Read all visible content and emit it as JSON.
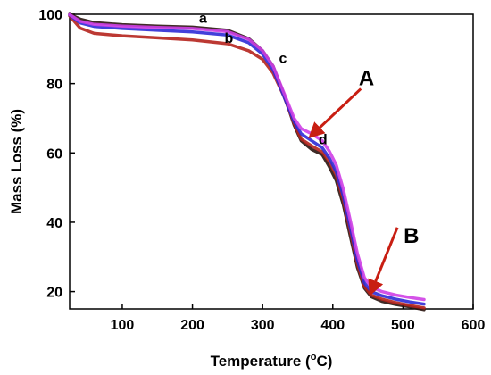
{
  "chart_data": {
    "type": "line",
    "xlabel": "Temperature (°C)",
    "xlabel_parts": {
      "main": "Temperature (",
      "sup": "o",
      "rest": "C)"
    },
    "ylabel": "Mass Loss (%)",
    "xlim": [
      25,
      600
    ],
    "ylim": [
      15,
      100
    ],
    "xticks": [
      100,
      200,
      300,
      400,
      500,
      600
    ],
    "yticks": [
      20,
      40,
      60,
      80,
      100
    ],
    "grid": false,
    "series": [
      {
        "name": "a",
        "color": "#2a1410",
        "points": [
          [
            25,
            100
          ],
          [
            40,
            98.6
          ],
          [
            60,
            97.6
          ],
          [
            100,
            97.0
          ],
          [
            150,
            96.6
          ],
          [
            200,
            96.3
          ],
          [
            250,
            95.4
          ],
          [
            280,
            93.0
          ],
          [
            300,
            89.5
          ],
          [
            315,
            85.0
          ],
          [
            330,
            77.0
          ],
          [
            345,
            68.0
          ],
          [
            355,
            63.5
          ],
          [
            370,
            61.0
          ],
          [
            385,
            59.5
          ],
          [
            395,
            56.0
          ],
          [
            405,
            52.0
          ],
          [
            415,
            45.0
          ],
          [
            425,
            36.0
          ],
          [
            435,
            27.0
          ],
          [
            445,
            21.0
          ],
          [
            455,
            18.5
          ],
          [
            470,
            17.2
          ],
          [
            490,
            16.3
          ],
          [
            510,
            15.6
          ],
          [
            530,
            14.8
          ]
        ]
      },
      {
        "name": "b",
        "color": "#b5231d",
        "points": [
          [
            25,
            99.5
          ],
          [
            40,
            96.0
          ],
          [
            60,
            94.5
          ],
          [
            100,
            93.8
          ],
          [
            150,
            93.2
          ],
          [
            200,
            92.6
          ],
          [
            250,
            91.5
          ],
          [
            280,
            89.5
          ],
          [
            300,
            87.0
          ],
          [
            315,
            83.0
          ],
          [
            330,
            76.5
          ],
          [
            345,
            68.5
          ],
          [
            355,
            64.0
          ],
          [
            370,
            62.0
          ],
          [
            385,
            60.3
          ],
          [
            395,
            57.5
          ],
          [
            405,
            53.5
          ],
          [
            415,
            46.5
          ],
          [
            425,
            37.5
          ],
          [
            435,
            28.0
          ],
          [
            445,
            21.5
          ],
          [
            455,
            19.0
          ],
          [
            470,
            17.8
          ],
          [
            490,
            16.8
          ],
          [
            510,
            16.0
          ],
          [
            530,
            15.3
          ]
        ]
      },
      {
        "name": "c",
        "color": "#2d2bd6",
        "points": [
          [
            25,
            99.8
          ],
          [
            40,
            97.5
          ],
          [
            60,
            96.5
          ],
          [
            100,
            95.9
          ],
          [
            150,
            95.4
          ],
          [
            200,
            94.9
          ],
          [
            250,
            94.0
          ],
          [
            280,
            91.8
          ],
          [
            300,
            88.5
          ],
          [
            315,
            84.0
          ],
          [
            330,
            76.5
          ],
          [
            345,
            69.0
          ],
          [
            355,
            65.5
          ],
          [
            370,
            63.5
          ],
          [
            385,
            61.5
          ],
          [
            395,
            58.5
          ],
          [
            405,
            54.5
          ],
          [
            415,
            47.5
          ],
          [
            425,
            38.5
          ],
          [
            435,
            29.0
          ],
          [
            445,
            22.5
          ],
          [
            455,
            20.0
          ],
          [
            470,
            18.8
          ],
          [
            490,
            17.8
          ],
          [
            510,
            17.0
          ],
          [
            530,
            16.4
          ]
        ]
      },
      {
        "name": "d",
        "color": "#cf3fe6",
        "points": [
          [
            25,
            99.9
          ],
          [
            40,
            98.0
          ],
          [
            60,
            97.1
          ],
          [
            100,
            96.6
          ],
          [
            150,
            96.2
          ],
          [
            200,
            95.9
          ],
          [
            250,
            95.0
          ],
          [
            280,
            92.8
          ],
          [
            300,
            89.5
          ],
          [
            315,
            85.0
          ],
          [
            330,
            77.5
          ],
          [
            345,
            70.0
          ],
          [
            355,
            67.0
          ],
          [
            370,
            65.5
          ],
          [
            385,
            63.5
          ],
          [
            395,
            60.5
          ],
          [
            405,
            56.5
          ],
          [
            415,
            49.5
          ],
          [
            425,
            40.5
          ],
          [
            435,
            31.0
          ],
          [
            445,
            24.0
          ],
          [
            455,
            21.3
          ],
          [
            470,
            20.0
          ],
          [
            490,
            19.0
          ],
          [
            510,
            18.3
          ],
          [
            530,
            17.7
          ]
        ]
      }
    ],
    "annotations": [
      {
        "text": "a",
        "x": 215,
        "y": 97.5
      },
      {
        "text": "b",
        "x": 252,
        "y": 91.8
      },
      {
        "text": "c",
        "x": 329,
        "y": 86.0
      },
      {
        "text": "d",
        "x": 386,
        "y": 62.5
      },
      {
        "text": "A",
        "x": 448,
        "y": 79.5,
        "arrow_from": [
          440,
          78.5
        ],
        "arrow_to": [
          372,
          65.5
        ]
      },
      {
        "text": "B",
        "x": 512,
        "y": 34.0,
        "arrow_from": [
          492,
          38.5
        ],
        "arrow_to": [
          456,
          20.5
        ]
      }
    ],
    "arrow_color": "#c81e12"
  }
}
